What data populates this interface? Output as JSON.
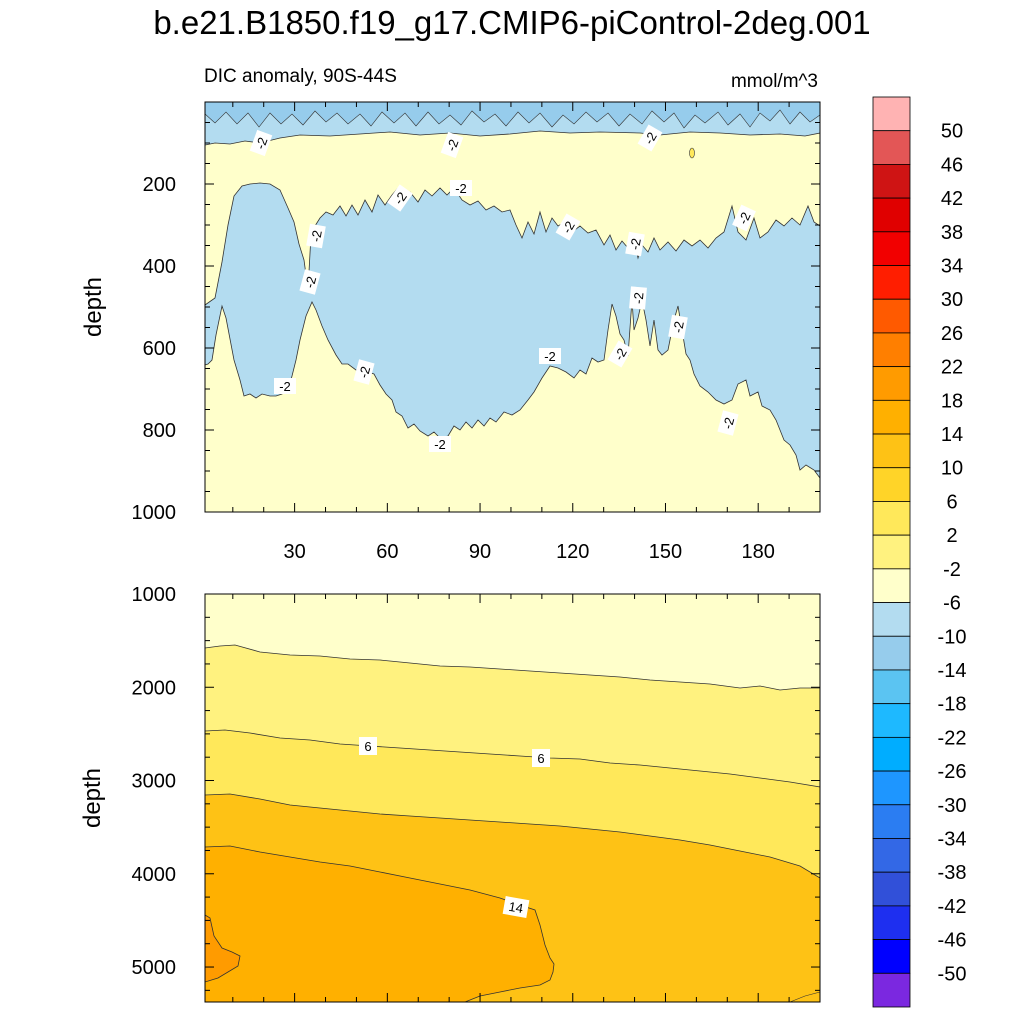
{
  "title": "b.e21.B1850.f19_g17.CMIP6-piControl-2deg.001",
  "chart_data": {
    "type": "heatmap",
    "title": "b.e21.B1850.f19_g17.CMIP6-piControl-2deg.001",
    "variable": "DIC anomaly, 90S-44S",
    "units": "mmol/m^3",
    "ylabel": "depth",
    "contour_label": "-2",
    "colorbar": {
      "levels": [
        "50",
        "46",
        "42",
        "38",
        "34",
        "30",
        "26",
        "22",
        "18",
        "14",
        "10",
        "6",
        "2",
        "-2",
        "-6",
        "-10",
        "-14",
        "-18",
        "-22",
        "-26",
        "-30",
        "-34",
        "-38",
        "-42",
        "-46",
        "-50"
      ],
      "colors": [
        "#ffb3b3",
        "#e35656",
        "#cf1414",
        "#e00000",
        "#f20000",
        "#ff1e00",
        "#ff5a00",
        "#ff7f00",
        "#ff9b00",
        "#ffb000",
        "#fec215",
        "#ffd428",
        "#ffe85a",
        "#fff27f",
        "#ffffcb",
        "#b3dcf0",
        "#96ccec",
        "#5bc4f2",
        "#1eb9ff",
        "#00adff",
        "#1e96ff",
        "#2b7df2",
        "#3368e6",
        "#3150d9",
        "#1e2ff0",
        "#0000ff",
        "#7b28e0"
      ]
    },
    "panels": [
      {
        "name": "upper-ocean",
        "y_ticks": [
          "200",
          "400",
          "600",
          "800",
          "1000"
        ],
        "y_ticks_values": [
          200,
          400,
          600,
          800,
          1000
        ],
        "ylim": [
          0,
          1000
        ],
        "x_ticks": [
          "30",
          "60",
          "90",
          "120",
          "150",
          "180"
        ],
        "x_ticks_values": [
          30,
          60,
          90,
          120,
          150,
          180
        ],
        "xlim": [
          1,
          200
        ]
      },
      {
        "name": "deep-ocean",
        "y_ticks": [
          "1000",
          "2000",
          "3000",
          "4000",
          "5000"
        ],
        "y_ticks_values": [
          1000,
          2000,
          3000,
          4000,
          5000
        ],
        "ylim": [
          1000,
          5375
        ],
        "x_ticks_values": [
          30,
          60,
          90,
          120,
          150,
          180
        ],
        "xlim": [
          1,
          200
        ],
        "contour_labels": [
          "6",
          "6",
          "14"
        ]
      }
    ]
  }
}
